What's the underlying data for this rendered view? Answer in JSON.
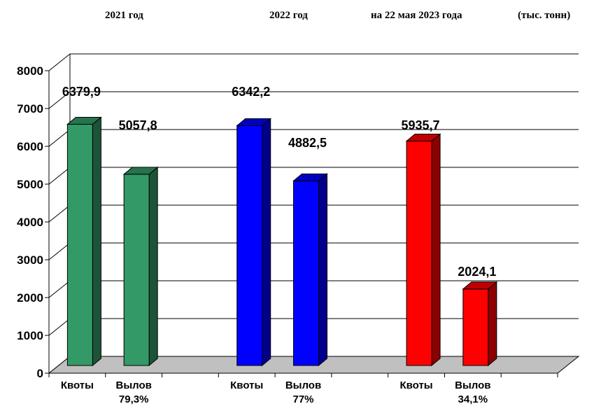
{
  "headers": {
    "h1": "2021  год",
    "h2": "2022  год",
    "h3": "на 22 мая 2023 года",
    "unit": "(тыс. тонн)"
  },
  "chart_data": {
    "type": "bar",
    "ylim": [
      0,
      8000
    ],
    "yticks": [
      0,
      1000,
      2000,
      3000,
      4000,
      5000,
      6000,
      7000,
      8000
    ],
    "grid": true,
    "categories": [
      "Квоты",
      "Вылов",
      "Квоты",
      "Вылов",
      "Квоты",
      "Вылов"
    ],
    "category_sublabels": [
      "",
      "79,3%",
      "",
      "77%",
      "",
      "34,1%"
    ],
    "groups": [
      "2021  год",
      "2022  год",
      "на 22 мая 2023 года"
    ],
    "values": [
      6379.9,
      5057.8,
      6342.2,
      4882.5,
      5935.7,
      2024.1
    ],
    "value_labels": [
      "6379,9",
      "5057,8",
      "6342,2",
      "4882,5",
      "5935,7",
      "2024,1"
    ],
    "colors": [
      "#339966",
      "#339966",
      "#0000ff",
      "#0000ff",
      "#ff0000",
      "#ff0000"
    ]
  }
}
